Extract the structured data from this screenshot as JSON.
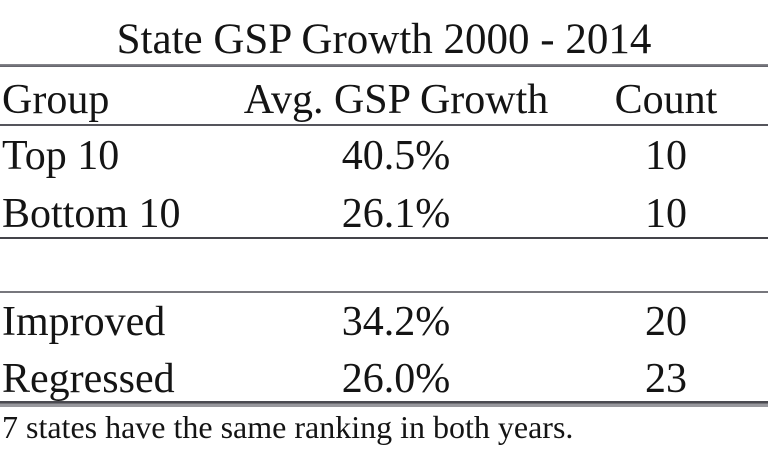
{
  "chart_data": {
    "type": "table",
    "title": "State GSP Growth 2000 - 2014",
    "columns": [
      "Group",
      "Avg. GSP Growth",
      "Count"
    ],
    "sections": [
      {
        "rows": [
          {
            "group": "Top 10",
            "avg_gsp_growth": "40.5%",
            "count": "10"
          },
          {
            "group": "Bottom 10",
            "avg_gsp_growth": "26.1%",
            "count": "10"
          }
        ]
      },
      {
        "rows": [
          {
            "group": "Improved",
            "avg_gsp_growth": "34.2%",
            "count": "20"
          },
          {
            "group": "Regressed",
            "avg_gsp_growth": "26.0%",
            "count": "23"
          }
        ]
      }
    ],
    "numeric": {
      "avg_gsp_growth_pct": {
        "Top 10": 40.5,
        "Bottom 10": 26.1,
        "Improved": 34.2,
        "Regressed": 26.0
      },
      "count": {
        "Top 10": 10,
        "Bottom 10": 10,
        "Improved": 20,
        "Regressed": 23
      }
    },
    "footnote": "7 states have the same ranking in both years.",
    "layout": {
      "grid": "off",
      "legend": "none",
      "rules": "horizontal-only"
    }
  },
  "colors": {
    "background": "#ffffff",
    "text": "#141414",
    "rule_dark": "#4a4a50",
    "rule_light": "#98989d"
  }
}
